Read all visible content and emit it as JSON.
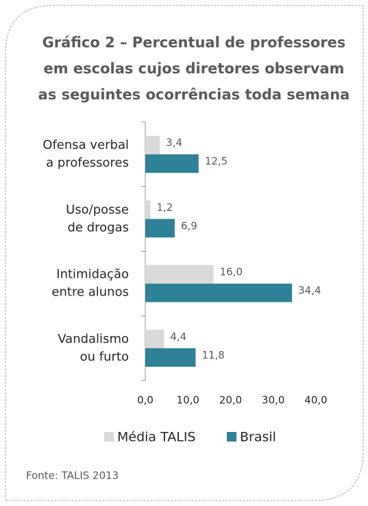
{
  "chart_data": {
    "type": "hbar",
    "title": [
      "Gráfico 2 – Percentual de professores",
      "em escolas cujos diretores observam",
      "as seguintes ocorrências toda semana"
    ],
    "categories": [
      [
        "Ofensa verbal",
        "a professores"
      ],
      [
        "Uso/posse",
        "de drogas"
      ],
      [
        "Intimidação",
        "entre alunos"
      ],
      [
        "Vandalismo",
        "ou furto"
      ]
    ],
    "series": [
      {
        "name": "Média TALIS",
        "color": "#d9d9d9",
        "values": [
          3.4,
          1.2,
          16.0,
          4.4
        ],
        "value_labels": [
          "3,4",
          "1,2",
          "16,0",
          "4,4"
        ]
      },
      {
        "name": "Brasil",
        "color": "#2e8196",
        "values": [
          12.5,
          6.9,
          34.4,
          11.8
        ],
        "value_labels": [
          "12,5",
          "6,9",
          "34,4",
          "11,8"
        ]
      }
    ],
    "xlim": [
      0,
      40
    ],
    "xticks": [
      {
        "value": 0,
        "label": "0,0"
      },
      {
        "value": 10,
        "label": "10,0"
      },
      {
        "value": 20,
        "label": "20,0"
      },
      {
        "value": 30,
        "label": "30,0"
      },
      {
        "value": 40,
        "label": "40,0"
      }
    ],
    "legend": "bottom",
    "source": "Fonte: TALIS 2013"
  }
}
